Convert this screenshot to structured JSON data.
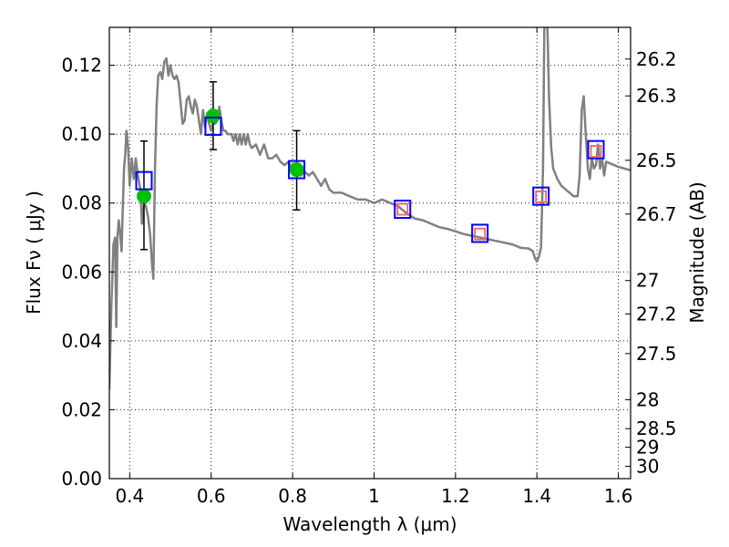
{
  "chart_data": {
    "type": "line",
    "title": "",
    "xlabel": "Wavelength  λ (μm)",
    "ylabel": "Flux  Fν  ( μJy )",
    "ylabel_right": "Magnitude (AB)",
    "xlim": [
      0.35,
      1.63
    ],
    "ylim": [
      0.0,
      0.131
    ],
    "grid": true,
    "x_ticks": [
      0.4,
      0.6,
      0.8,
      1.0,
      1.2,
      1.4,
      1.6
    ],
    "x_tick_labels": [
      "0.4",
      "0.6",
      "0.8",
      "1",
      "1.2",
      "1.4",
      "1.6"
    ],
    "y_ticks": [
      0.0,
      0.02,
      0.04,
      0.06,
      0.08,
      0.1,
      0.12
    ],
    "y_tick_labels": [
      "0.00",
      "0.02",
      "0.04",
      "0.06",
      "0.08",
      "0.10",
      "0.12"
    ],
    "right_ticks": [
      {
        "flux": 0.1218,
        "label": "26.2"
      },
      {
        "flux": 0.1111,
        "label": "26.3"
      },
      {
        "flux": 0.0924,
        "label": "26.5"
      },
      {
        "flux": 0.0768,
        "label": "26.7"
      },
      {
        "flux": 0.0575,
        "label": "27"
      },
      {
        "flux": 0.0478,
        "label": "27.2"
      },
      {
        "flux": 0.0363,
        "label": "27.5"
      },
      {
        "flux": 0.0229,
        "label": "28"
      },
      {
        "flux": 0.0145,
        "label": "28.5"
      },
      {
        "flux": 0.0091,
        "label": "29"
      },
      {
        "flux": 0.0036,
        "label": "30"
      }
    ],
    "series": [
      {
        "kind": "sed-model",
        "color": "#808080",
        "points": [
          [
            0.35,
            0.026
          ],
          [
            0.355,
            0.05
          ],
          [
            0.36,
            0.068
          ],
          [
            0.364,
            0.07
          ],
          [
            0.367,
            0.044
          ],
          [
            0.37,
            0.07
          ],
          [
            0.373,
            0.075
          ],
          [
            0.376,
            0.072
          ],
          [
            0.38,
            0.066
          ],
          [
            0.383,
            0.078
          ],
          [
            0.386,
            0.09
          ],
          [
            0.389,
            0.094
          ],
          [
            0.392,
            0.101
          ],
          [
            0.396,
            0.096
          ],
          [
            0.4,
            0.085
          ],
          [
            0.405,
            0.093
          ],
          [
            0.41,
            0.087
          ],
          [
            0.415,
            0.093
          ],
          [
            0.42,
            0.088
          ],
          [
            0.426,
            0.084
          ],
          [
            0.43,
            0.074
          ],
          [
            0.435,
            0.08
          ],
          [
            0.44,
            0.079
          ],
          [
            0.445,
            0.076
          ],
          [
            0.45,
            0.071
          ],
          [
            0.455,
            0.062
          ],
          [
            0.458,
            0.058
          ],
          [
            0.462,
            0.09
          ],
          [
            0.466,
            0.108
          ],
          [
            0.47,
            0.117
          ],
          [
            0.475,
            0.118
          ],
          [
            0.48,
            0.116
          ],
          [
            0.485,
            0.121
          ],
          [
            0.49,
            0.122
          ],
          [
            0.495,
            0.117
          ],
          [
            0.5,
            0.12
          ],
          [
            0.505,
            0.117
          ],
          [
            0.51,
            0.116
          ],
          [
            0.515,
            0.117
          ],
          [
            0.52,
            0.115
          ],
          [
            0.525,
            0.109
          ],
          [
            0.53,
            0.103
          ],
          [
            0.535,
            0.104
          ],
          [
            0.54,
            0.11
          ],
          [
            0.545,
            0.111
          ],
          [
            0.55,
            0.108
          ],
          [
            0.555,
            0.106
          ],
          [
            0.56,
            0.11
          ],
          [
            0.565,
            0.108
          ],
          [
            0.57,
            0.104
          ],
          [
            0.575,
            0.1
          ],
          [
            0.58,
            0.107
          ],
          [
            0.585,
            0.102
          ],
          [
            0.59,
            0.106
          ],
          [
            0.595,
            0.103
          ],
          [
            0.6,
            0.101
          ],
          [
            0.605,
            0.104
          ],
          [
            0.61,
            0.103
          ],
          [
            0.615,
            0.104
          ],
          [
            0.62,
            0.108
          ],
          [
            0.625,
            0.104
          ],
          [
            0.63,
            0.101
          ],
          [
            0.635,
            0.101
          ],
          [
            0.64,
            0.1
          ],
          [
            0.645,
            0.1
          ],
          [
            0.65,
            0.1
          ],
          [
            0.655,
            0.098
          ],
          [
            0.66,
            0.1
          ],
          [
            0.665,
            0.097
          ],
          [
            0.67,
            0.1
          ],
          [
            0.675,
            0.097
          ],
          [
            0.68,
            0.1
          ],
          [
            0.685,
            0.097
          ],
          [
            0.69,
            0.1
          ],
          [
            0.695,
            0.097
          ],
          [
            0.7,
            0.096
          ],
          [
            0.71,
            0.097
          ],
          [
            0.72,
            0.094
          ],
          [
            0.73,
            0.097
          ],
          [
            0.74,
            0.093
          ],
          [
            0.75,
            0.093
          ],
          [
            0.76,
            0.094
          ],
          [
            0.77,
            0.092
          ],
          [
            0.78,
            0.091
          ],
          [
            0.79,
            0.092
          ],
          [
            0.8,
            0.09
          ],
          [
            0.81,
            0.091
          ],
          [
            0.82,
            0.088
          ],
          [
            0.83,
            0.089
          ],
          [
            0.84,
            0.088
          ],
          [
            0.85,
            0.089
          ],
          [
            0.86,
            0.087
          ],
          [
            0.87,
            0.085
          ],
          [
            0.88,
            0.087
          ],
          [
            0.89,
            0.084
          ],
          [
            0.9,
            0.083
          ],
          [
            0.92,
            0.083
          ],
          [
            0.94,
            0.082
          ],
          [
            0.96,
            0.081
          ],
          [
            0.98,
            0.081
          ],
          [
            1.0,
            0.08
          ],
          [
            1.02,
            0.081
          ],
          [
            1.04,
            0.08
          ],
          [
            1.06,
            0.079
          ],
          [
            1.08,
            0.077
          ],
          [
            1.1,
            0.0755
          ],
          [
            1.12,
            0.075
          ],
          [
            1.14,
            0.074
          ],
          [
            1.16,
            0.073
          ],
          [
            1.18,
            0.0725
          ],
          [
            1.2,
            0.0718
          ],
          [
            1.22,
            0.071
          ],
          [
            1.24,
            0.0705
          ],
          [
            1.26,
            0.07
          ],
          [
            1.28,
            0.0695
          ],
          [
            1.3,
            0.069
          ],
          [
            1.32,
            0.0685
          ],
          [
            1.34,
            0.068
          ],
          [
            1.36,
            0.067
          ],
          [
            1.38,
            0.0668
          ],
          [
            1.39,
            0.066
          ],
          [
            1.395,
            0.064
          ],
          [
            1.4,
            0.063
          ],
          [
            1.405,
            0.0645
          ],
          [
            1.41,
            0.067
          ],
          [
            1.415,
            0.09
          ],
          [
            1.418,
            0.13
          ],
          [
            1.42,
            0.135
          ],
          [
            1.425,
            0.135
          ],
          [
            1.43,
            0.11
          ],
          [
            1.435,
            0.096
          ],
          [
            1.44,
            0.09
          ],
          [
            1.45,
            0.087
          ],
          [
            1.46,
            0.085
          ],
          [
            1.47,
            0.084
          ],
          [
            1.48,
            0.083
          ],
          [
            1.49,
            0.082
          ],
          [
            1.5,
            0.082
          ],
          [
            1.505,
            0.088
          ],
          [
            1.51,
            0.107
          ],
          [
            1.515,
            0.111
          ],
          [
            1.52,
            0.1
          ],
          [
            1.525,
            0.09
          ],
          [
            1.53,
            0.087
          ],
          [
            1.535,
            0.093
          ],
          [
            1.54,
            0.09
          ],
          [
            1.545,
            0.091
          ],
          [
            1.55,
            0.097
          ],
          [
            1.555,
            0.09
          ],
          [
            1.56,
            0.093
          ],
          [
            1.565,
            0.088
          ],
          [
            1.57,
            0.092
          ],
          [
            1.58,
            0.0915
          ],
          [
            1.6,
            0.0905
          ],
          [
            1.63,
            0.0895
          ]
        ]
      },
      {
        "kind": "observed",
        "color": "#00c000",
        "points": [
          {
            "x": 0.435,
            "y": 0.082,
            "err": [
              0.0665,
              0.098
            ]
          },
          {
            "x": 0.605,
            "y": 0.1053,
            "err": [
              0.0955,
              0.1152
            ]
          },
          {
            "x": 0.81,
            "y": 0.0897,
            "err": [
              0.078,
              0.101
            ]
          }
        ]
      },
      {
        "kind": "model-photometry",
        "color": "#0000ff",
        "points": [
          {
            "x": 0.435,
            "y": 0.0865
          },
          {
            "x": 0.605,
            "y": 0.1023
          },
          {
            "x": 0.81,
            "y": 0.0897
          },
          {
            "x": 1.07,
            "y": 0.0782
          },
          {
            "x": 1.26,
            "y": 0.0712
          },
          {
            "x": 1.41,
            "y": 0.082
          },
          {
            "x": 1.545,
            "y": 0.0955
          }
        ]
      },
      {
        "kind": "upper-limit",
        "color": "#ff6060",
        "points": [
          {
            "x": 1.07,
            "y": 0.0782
          },
          {
            "x": 1.26,
            "y": 0.071
          },
          {
            "x": 1.41,
            "y": 0.0818
          },
          {
            "x": 1.545,
            "y": 0.095
          }
        ]
      }
    ]
  }
}
